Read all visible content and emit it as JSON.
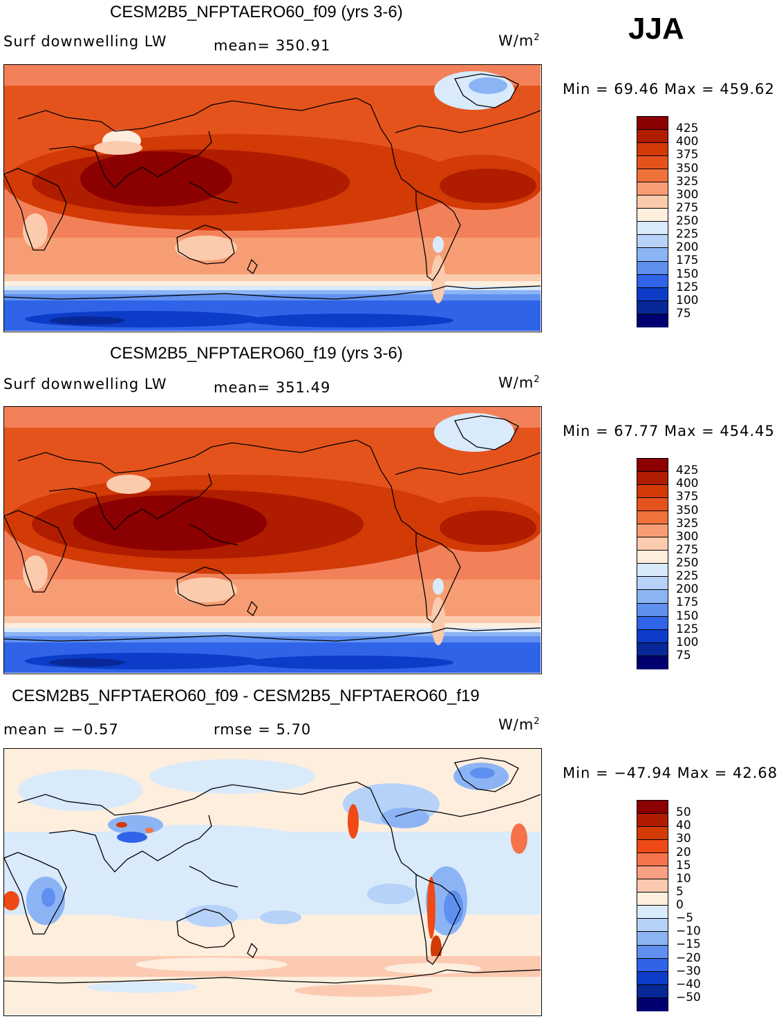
{
  "season": "JJA",
  "panels": [
    {
      "title": "CESM2B5_NFPTAERO60_f09 (yrs 3-6)",
      "left_label": "Surf  downwelling LW",
      "center_label": "mean=  350.91",
      "units": "W/m",
      "units_exp": "2",
      "minmax": "Min =   69.46  Max = 459.62",
      "map_type": "absolute"
    },
    {
      "title": "CESM2B5_NFPTAERO60_f19 (yrs 3-6)",
      "left_label": "Surf  downwelling LW",
      "center_label": "mean=  351.49",
      "units": "W/m",
      "units_exp": "2",
      "minmax": "Min =   67.77  Max = 454.45",
      "map_type": "absolute"
    },
    {
      "title": "CESM2B5_NFPTAERO60_f09 - CESM2B5_NFPTAERO60_f19",
      "left_label": "mean =   −0.57",
      "center_label": "rmse =     5.70",
      "units": "W/m",
      "units_exp": "2",
      "minmax": "Min = −47.94  Max =   42.68",
      "map_type": "difference"
    }
  ],
  "colorbars": {
    "absolute": {
      "labels": [
        "425",
        "400",
        "375",
        "350",
        "325",
        "300",
        "275",
        "250",
        "225",
        "200",
        "175",
        "150",
        "125",
        "100",
        "75"
      ],
      "colors": [
        "#8b0000",
        "#b01c00",
        "#d23a06",
        "#e5531c",
        "#f0713a",
        "#f79d74",
        "#fbcbad",
        "#fdeede",
        "#d9eafb",
        "#b6d2f8",
        "#8cb4f5",
        "#5f90f0",
        "#2f63e8",
        "#0c3cc8",
        "#072896",
        "#000070"
      ]
    },
    "difference": {
      "labels": [
        "50",
        "40",
        "30",
        "20",
        "15",
        "10",
        "5",
        "0",
        "−5",
        "−10",
        "−15",
        "−20",
        "−30",
        "−40",
        "−50"
      ],
      "colors": [
        "#8b0000",
        "#b01c00",
        "#d23a06",
        "#ef4a16",
        "#f6724a",
        "#f9a083",
        "#fcc9b1",
        "#fdeede",
        "#d9eafb",
        "#b6d2f8",
        "#8cb4f5",
        "#5f90f0",
        "#2f63e8",
        "#0c3cc8",
        "#072896",
        "#000070"
      ]
    }
  }
}
